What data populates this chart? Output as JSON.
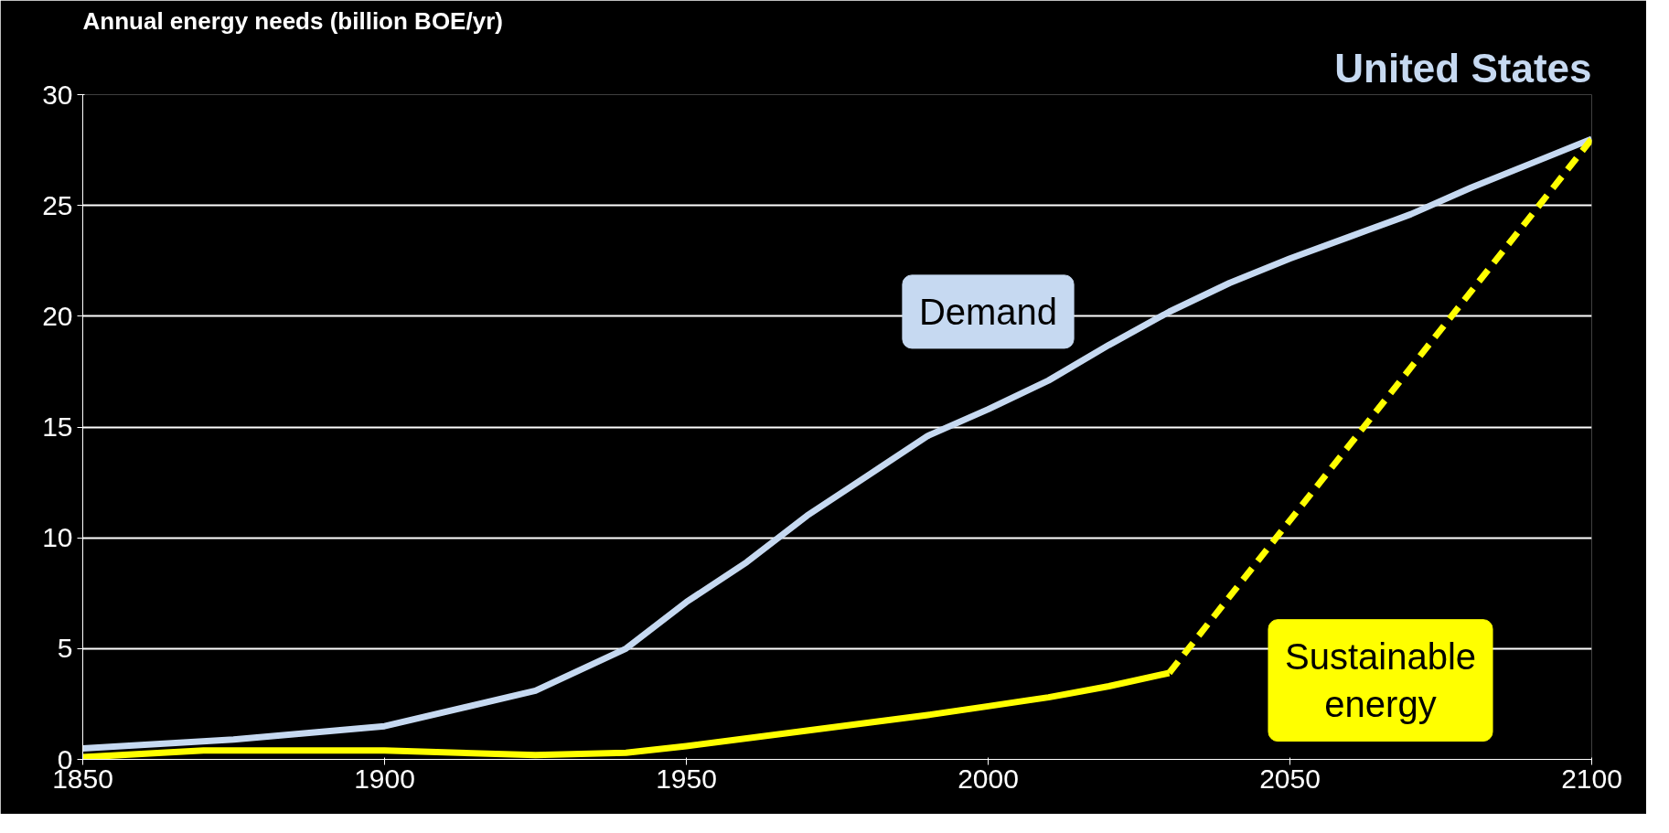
{
  "chart_data": {
    "type": "line",
    "title": "United States",
    "ylabel": "Annual energy needs (billion BOE/yr)",
    "x": [
      1850,
      1875,
      1900,
      1925,
      1940,
      1950,
      1960,
      1970,
      1980,
      1990,
      2000,
      2010,
      2020,
      2030,
      2040,
      2050,
      2060,
      2070,
      2080,
      2090,
      2100
    ],
    "series": [
      {
        "name": "Demand",
        "color": "#c6d9f1",
        "values": [
          0.5,
          0.9,
          1.5,
          3.1,
          5,
          7.1,
          8.9,
          11,
          12.8,
          14.6,
          15.8,
          17.1,
          18.7,
          20.2,
          21.5,
          22.6,
          23.6,
          24.6,
          25.8,
          26.9,
          28
        ]
      },
      {
        "name": "Sustainable energy",
        "color": "#ffff00",
        "x": [
          1850,
          1870,
          1900,
          1925,
          1940,
          1950,
          1970,
          1990,
          2000,
          2010,
          2020,
          2030
        ],
        "values": [
          0.1,
          0.4,
          0.4,
          0.2,
          0.3,
          0.6,
          1.3,
          2.0,
          2.4,
          2.8,
          3.3,
          3.9
        ]
      },
      {
        "color": "#ffff00",
        "x": [
          2030,
          2100
        ],
        "values": [
          3.9,
          28
        ],
        "line_style": "dashed"
      }
    ],
    "xlim": [
      1850,
      2100
    ],
    "ylim": [
      0,
      30
    ],
    "xticks": [
      1850,
      1900,
      1950,
      2000,
      2050,
      2100
    ],
    "yticks": [
      0,
      5,
      10,
      15,
      20,
      25,
      30
    ],
    "grid": "y",
    "line_style": "solid",
    "marker": "none"
  }
}
